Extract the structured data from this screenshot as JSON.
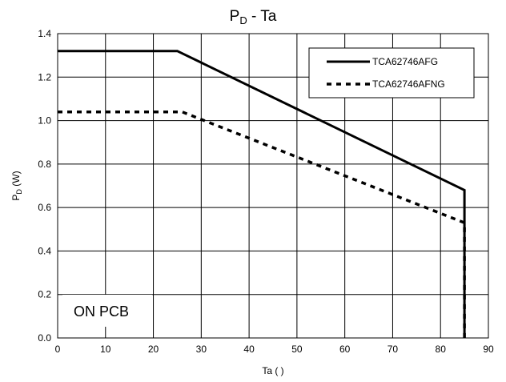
{
  "chart_data": {
    "type": "line",
    "title_main": "P",
    "title_sub": "D",
    "title_rest": " - Ta",
    "xlabel": "Ta (   )",
    "ylabel_main": "P",
    "ylabel_sub": "D",
    "ylabel_rest": " (W)",
    "xlim": [
      0,
      90
    ],
    "ylim": [
      0,
      1.4
    ],
    "x_ticks": [
      "0",
      "10",
      "20",
      "30",
      "40",
      "50",
      "60",
      "70",
      "80",
      "90"
    ],
    "y_ticks": [
      "0.0",
      "0.2",
      "0.4",
      "0.6",
      "0.8",
      "1.0",
      "1.2",
      "1.4"
    ],
    "grid": true,
    "legend_position": "top-right",
    "annotation": "ON PCB",
    "series": [
      {
        "name": "TCA62746AFG",
        "style": "solid",
        "color": "#000000",
        "points": [
          [
            0,
            1.32
          ],
          [
            25,
            1.32
          ],
          [
            85,
            0.68
          ],
          [
            85,
            0
          ]
        ]
      },
      {
        "name": "TCA62746AFNG",
        "style": "dashed",
        "color": "#000000",
        "points": [
          [
            0,
            1.04
          ],
          [
            26,
            1.04
          ],
          [
            85,
            0.53
          ],
          [
            85,
            0
          ]
        ]
      }
    ]
  }
}
